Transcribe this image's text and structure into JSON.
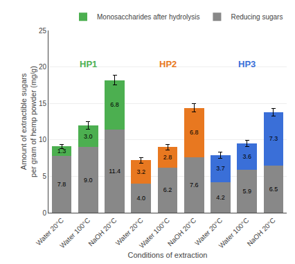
{
  "chart_data": {
    "type": "bar",
    "stacked": true,
    "xlabel": "Conditions of extraction",
    "ylabel": "Amount of extractible sugars\nper gram of hemp powder (mg/g)",
    "categories": [
      "Water 20°C",
      "Water 100°C",
      "NaOH 20°C",
      "Water 20°C",
      "Water 100°C",
      "NaOH 20°C",
      "Water 20°C",
      "Water 100°C",
      "NaOH 20°C"
    ],
    "series": [
      {
        "name": "Reducing sugars",
        "color": "#888888",
        "values": [
          7.8,
          9.0,
          11.4,
          4.0,
          6.2,
          7.6,
          4.2,
          5.9,
          6.5
        ],
        "value_labels": [
          "7.8",
          "9.0",
          "11.4",
          "4.0",
          "6.2",
          "7.6",
          "4.2",
          "5.9",
          "6.5"
        ]
      },
      {
        "name": "Monosaccharides after hydrolysis",
        "colors": [
          "#4CAF50",
          "#4CAF50",
          "#4CAF50",
          "#E87820",
          "#E87820",
          "#E87820",
          "#3A6FD8",
          "#3A6FD8",
          "#3A6FD8"
        ],
        "values": [
          1.3,
          3.0,
          6.8,
          3.2,
          2.8,
          6.8,
          3.7,
          3.6,
          7.3
        ],
        "value_labels": [
          "1.3",
          "3.0",
          "6.8",
          "3.2",
          "2.8",
          "6.8",
          "3.7",
          "3.6",
          "7.3"
        ],
        "errors": [
          0.3,
          0.5,
          0.7,
          0.4,
          0.4,
          0.6,
          0.4,
          0.4,
          0.5
        ]
      }
    ],
    "annotations": [
      {
        "text": "HP1",
        "x": 1,
        "y": 19.5,
        "color": "#4CAF50"
      },
      {
        "text": "HP2",
        "x": 4,
        "y": 19.5,
        "color": "#E87820"
      },
      {
        "text": "HP3",
        "x": 7,
        "y": 19.5,
        "color": "#3A6FD8"
      }
    ],
    "ylim": [
      0,
      25
    ],
    "yticks": [
      0,
      5,
      10,
      15,
      20,
      25
    ],
    "grid": true,
    "legend": "upper right",
    "data_labels": true
  }
}
